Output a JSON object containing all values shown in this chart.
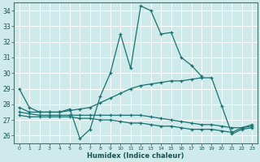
{
  "title": "",
  "xlabel": "Humidex (Indice chaleur)",
  "background_color": "#ceeaea",
  "grid_color": "#b8d8d8",
  "line_color": "#1a7070",
  "x_ticks": [
    0,
    1,
    2,
    3,
    4,
    5,
    6,
    7,
    8,
    9,
    10,
    11,
    12,
    13,
    14,
    15,
    16,
    17,
    18,
    19,
    20,
    21,
    22,
    23
  ],
  "ylim": [
    25.5,
    34.5
  ],
  "xlim": [
    -0.5,
    23.5
  ],
  "y_ticks": [
    26,
    27,
    28,
    29,
    30,
    31,
    32,
    33,
    34
  ],
  "lines": [
    {
      "x": [
        0,
        1,
        2,
        3,
        4,
        5,
        6,
        7,
        8,
        9,
        10,
        11,
        12,
        13,
        14,
        15,
        16,
        17,
        18,
        19,
        20,
        21,
        22,
        23
      ],
      "y": [
        29.0,
        27.8,
        27.5,
        27.5,
        27.5,
        27.7,
        25.8,
        26.4,
        28.5,
        30.0,
        32.5,
        30.3,
        34.3,
        34.0,
        32.5,
        32.6,
        31.0,
        30.5,
        29.8,
        null,
        null,
        null,
        null,
        null
      ]
    },
    {
      "x": [
        0,
        1,
        2,
        3,
        4,
        5,
        6,
        7,
        8,
        9,
        10,
        11,
        12,
        13,
        14,
        15,
        16,
        17,
        18,
        19,
        20,
        21,
        22,
        23
      ],
      "y": [
        27.8,
        27.5,
        27.5,
        27.5,
        27.5,
        27.6,
        27.7,
        27.8,
        28.1,
        28.4,
        28.7,
        29.0,
        29.2,
        29.3,
        29.4,
        29.5,
        29.5,
        29.6,
        29.7,
        29.7,
        27.9,
        26.1,
        26.4,
        26.5
      ]
    },
    {
      "x": [
        0,
        1,
        2,
        3,
        4,
        5,
        6,
        7,
        8,
        9,
        10,
        11,
        12,
        13,
        14,
        15,
        16,
        17,
        18,
        19,
        20,
        21,
        22,
        23
      ],
      "y": [
        27.5,
        27.4,
        27.3,
        27.3,
        27.3,
        27.3,
        27.3,
        27.3,
        27.3,
        27.3,
        27.3,
        27.3,
        27.3,
        27.2,
        27.1,
        27.0,
        26.9,
        26.8,
        26.7,
        26.7,
        26.6,
        26.5,
        26.5,
        26.6
      ]
    },
    {
      "x": [
        0,
        1,
        2,
        3,
        4,
        5,
        6,
        7,
        8,
        9,
        10,
        11,
        12,
        13,
        14,
        15,
        16,
        17,
        18,
        19,
        20,
        21,
        22,
        23
      ],
      "y": [
        27.3,
        27.2,
        27.2,
        27.2,
        27.2,
        27.2,
        27.1,
        27.1,
        27.0,
        27.0,
        26.9,
        26.8,
        26.8,
        26.7,
        26.6,
        26.6,
        26.5,
        26.4,
        26.4,
        26.4,
        26.3,
        26.2,
        26.5,
        26.7
      ]
    }
  ]
}
